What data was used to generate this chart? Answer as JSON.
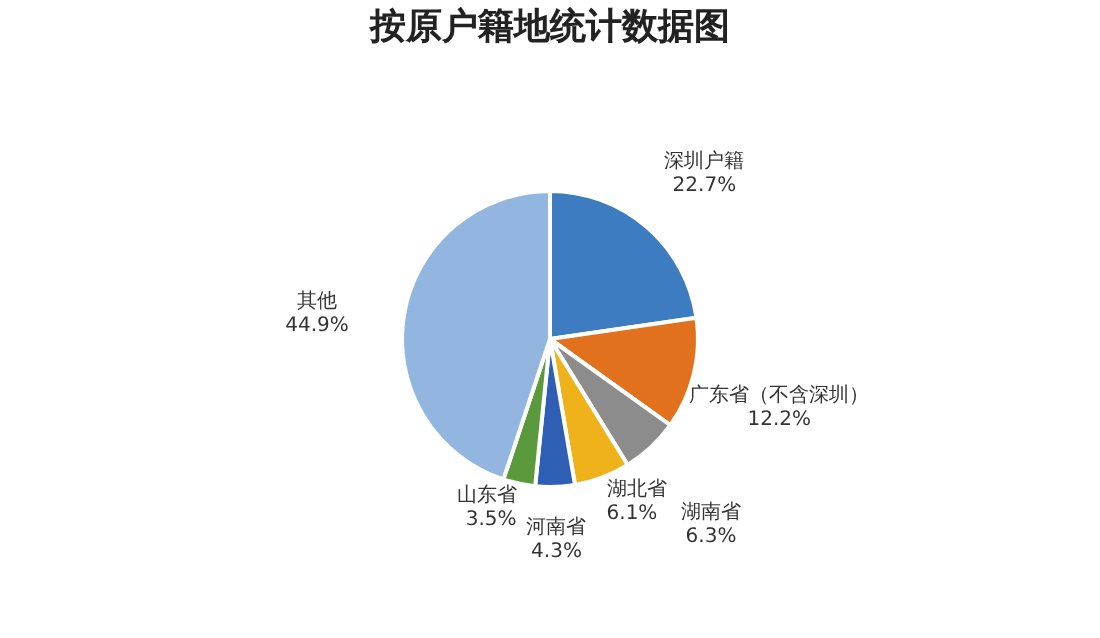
{
  "chart_data": {
    "type": "pie",
    "title": "按原户籍地统计数据图",
    "categories": [
      "深圳户籍",
      "广东省（不含深圳）",
      "湖南省",
      "湖北省",
      "河南省",
      "山东省",
      "其他"
    ],
    "values": [
      22.7,
      12.2,
      6.3,
      6.1,
      4.3,
      3.5,
      44.9
    ],
    "value_labels": [
      "22.7%",
      "12.2%",
      "6.3%",
      "6.1%",
      "4.3%",
      "3.5%",
      "44.9%"
    ],
    "colors": [
      "#3d7cc0",
      "#e2711d",
      "#8c8c8c",
      "#f0b21a",
      "#2e5fb5",
      "#5a9a3c",
      "#93b6e0"
    ],
    "legend": false
  }
}
